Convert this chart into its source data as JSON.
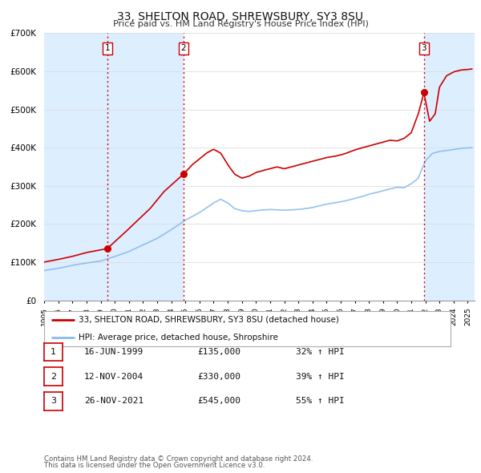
{
  "title_line1": "33, SHELTON ROAD, SHREWSBURY, SY3 8SU",
  "title_line2": "Price paid vs. HM Land Registry's House Price Index (HPI)",
  "ylim": [
    0,
    700000
  ],
  "yticks": [
    0,
    100000,
    200000,
    300000,
    400000,
    500000,
    600000,
    700000
  ],
  "ytick_labels": [
    "£0",
    "£100K",
    "£200K",
    "£300K",
    "£400K",
    "£500K",
    "£600K",
    "£700K"
  ],
  "xlim_start": 1995.0,
  "xlim_end": 2025.5,
  "transactions": [
    {
      "date_num": 1999.458,
      "price": 135000,
      "label": "1"
    },
    {
      "date_num": 2004.873,
      "price": 330000,
      "label": "2"
    },
    {
      "date_num": 2021.9,
      "price": 545000,
      "label": "3"
    }
  ],
  "vline_color": "#cc0000",
  "shade_color": "#ddeeff",
  "legend_entries": [
    "33, SHELTON ROAD, SHREWSBURY, SY3 8SU (detached house)",
    "HPI: Average price, detached house, Shropshire"
  ],
  "table_rows": [
    {
      "num": "1",
      "date": "16-JUN-1999",
      "price": "£135,000",
      "hpi": "32% ↑ HPI"
    },
    {
      "num": "2",
      "date": "12-NOV-2004",
      "price": "£330,000",
      "hpi": "39% ↑ HPI"
    },
    {
      "num": "3",
      "date": "26-NOV-2021",
      "price": "£545,000",
      "hpi": "55% ↑ HPI"
    }
  ],
  "footer_line1": "Contains HM Land Registry data © Crown copyright and database right 2024.",
  "footer_line2": "This data is licensed under the Open Government Licence v3.0.",
  "line_color_red": "#cc0000",
  "line_color_blue": "#88bbee",
  "bg_color": "#ffffff",
  "grid_color": "#dddddd",
  "prop_anchors_x": [
    1995.0,
    1996.0,
    1997.0,
    1998.0,
    1999.458,
    2000.5,
    2001.5,
    2002.5,
    2003.5,
    2004.873,
    2005.5,
    2006.0,
    2006.5,
    2007.0,
    2007.5,
    2008.0,
    2008.5,
    2009.0,
    2009.5,
    2010.0,
    2010.5,
    2011.0,
    2011.5,
    2012.0,
    2012.5,
    2013.0,
    2013.5,
    2014.0,
    2014.5,
    2015.0,
    2015.5,
    2016.0,
    2016.5,
    2017.0,
    2017.5,
    2018.0,
    2018.5,
    2019.0,
    2019.5,
    2020.0,
    2020.5,
    2021.0,
    2021.5,
    2021.9,
    2022.3,
    2022.7,
    2023.0,
    2023.5,
    2024.0,
    2024.5,
    2025.3
  ],
  "prop_anchors_y": [
    100000,
    107000,
    115000,
    125000,
    135000,
    170000,
    205000,
    240000,
    285000,
    330000,
    355000,
    370000,
    385000,
    395000,
    385000,
    355000,
    330000,
    320000,
    325000,
    335000,
    340000,
    345000,
    350000,
    345000,
    350000,
    355000,
    360000,
    365000,
    370000,
    375000,
    378000,
    382000,
    388000,
    395000,
    400000,
    405000,
    410000,
    415000,
    420000,
    418000,
    425000,
    440000,
    490000,
    545000,
    470000,
    490000,
    560000,
    590000,
    600000,
    605000,
    608000
  ],
  "hpi_anchors_x": [
    1995.0,
    1996.0,
    1997.0,
    1998.0,
    1999.0,
    2000.0,
    2001.0,
    2002.0,
    2003.0,
    2004.0,
    2005.0,
    2006.0,
    2007.0,
    2007.5,
    2008.0,
    2008.5,
    2009.0,
    2009.5,
    2010.0,
    2010.5,
    2011.0,
    2011.5,
    2012.0,
    2012.5,
    2013.0,
    2013.5,
    2014.0,
    2014.5,
    2015.0,
    2015.5,
    2016.0,
    2016.5,
    2017.0,
    2017.5,
    2018.0,
    2018.5,
    2019.0,
    2019.5,
    2020.0,
    2020.5,
    2021.0,
    2021.5,
    2022.0,
    2022.5,
    2023.0,
    2023.5,
    2024.0,
    2024.5,
    2025.3
  ],
  "hpi_anchors_y": [
    78000,
    84000,
    92000,
    98000,
    103000,
    115000,
    128000,
    145000,
    162000,
    185000,
    210000,
    230000,
    255000,
    265000,
    255000,
    240000,
    235000,
    233000,
    235000,
    237000,
    238000,
    237000,
    236000,
    237000,
    238000,
    240000,
    243000,
    248000,
    252000,
    255000,
    258000,
    262000,
    267000,
    272000,
    278000,
    282000,
    287000,
    292000,
    296000,
    295000,
    305000,
    320000,
    365000,
    385000,
    390000,
    393000,
    395000,
    398000,
    400000
  ]
}
